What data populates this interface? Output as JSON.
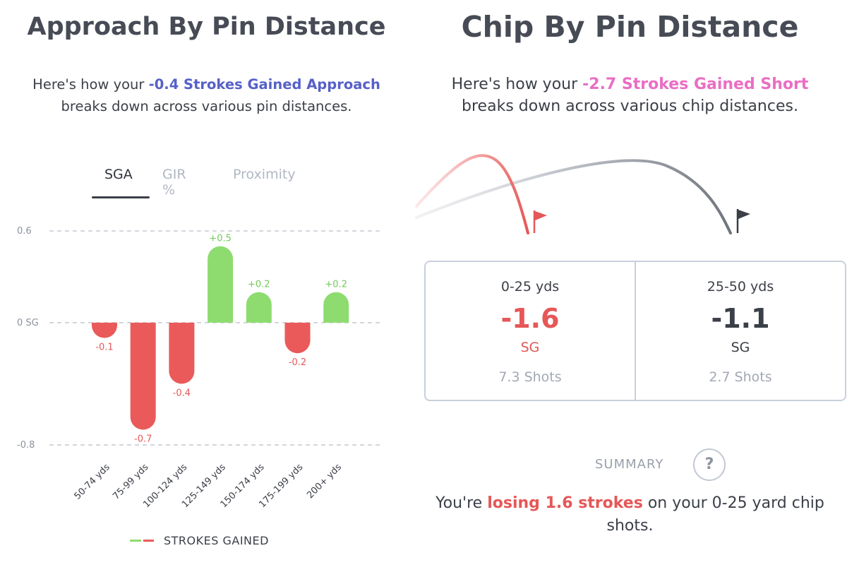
{
  "approach": {
    "title": "Approach By Pin Distance",
    "subtitle_pre": "Here's how your ",
    "subtitle_highlight": "-0.4 Strokes Gained Approach",
    "subtitle_post": "breaks down across various pin distances.",
    "tabs": [
      {
        "label": "SGA",
        "active": true
      },
      {
        "label": "GIR %",
        "active": false
      },
      {
        "label": "Proximity",
        "active": false
      }
    ],
    "legend_label": "STROKES GAINED"
  },
  "chart_data": {
    "type": "bar",
    "categories": [
      "50-74 yds",
      "75-99 yds",
      "100-124 yds",
      "125-149 yds",
      "150-174 yds",
      "175-199 yds",
      "200+ yds"
    ],
    "values": [
      -0.1,
      -0.7,
      -0.4,
      0.5,
      0.2,
      -0.2,
      0.2
    ],
    "value_labels": [
      "-0.1",
      "-0.7",
      "-0.4",
      "+0.5",
      "+0.2",
      "-0.2",
      "+0.2"
    ],
    "series": [
      {
        "name": "STROKES GAINED",
        "values": [
          -0.1,
          -0.7,
          -0.4,
          0.5,
          0.2,
          -0.2,
          0.2
        ]
      }
    ],
    "ylim": [
      -0.8,
      0.6
    ],
    "yticks": [
      0.6,
      0,
      -0.8
    ],
    "ytick_labels": [
      "0.6",
      "0 SG",
      "-0.8"
    ],
    "grid": "dashed horizontal at ticks",
    "legend": "bottom",
    "positive_color": "#8edc70",
    "negative_color": "#ea5a5a"
  },
  "chip": {
    "title": "Chip By Pin Distance",
    "subtitle_pre": "Here's how your ",
    "subtitle_highlight": "-2.7 Strokes Gained Short",
    "subtitle_post": "breaks down across various chip distances.",
    "flag_icons": [
      "flag-icon",
      "flag-icon"
    ],
    "stats": [
      {
        "range": "0-25 yds",
        "value": "-1.6",
        "unit": "SG",
        "shots": "7.3 Shots",
        "color": "#e65757"
      },
      {
        "range": "25-50 yds",
        "value": "-1.1",
        "unit": "SG",
        "shots": "2.7 Shots",
        "color": "#3b3f47"
      }
    ],
    "summary_label": "SUMMARY",
    "help_symbol": "?",
    "summary_pre": "You're ",
    "summary_highlight": "losing 1.6 strokes",
    "summary_post": " on your 0-25 yard chip shots."
  }
}
